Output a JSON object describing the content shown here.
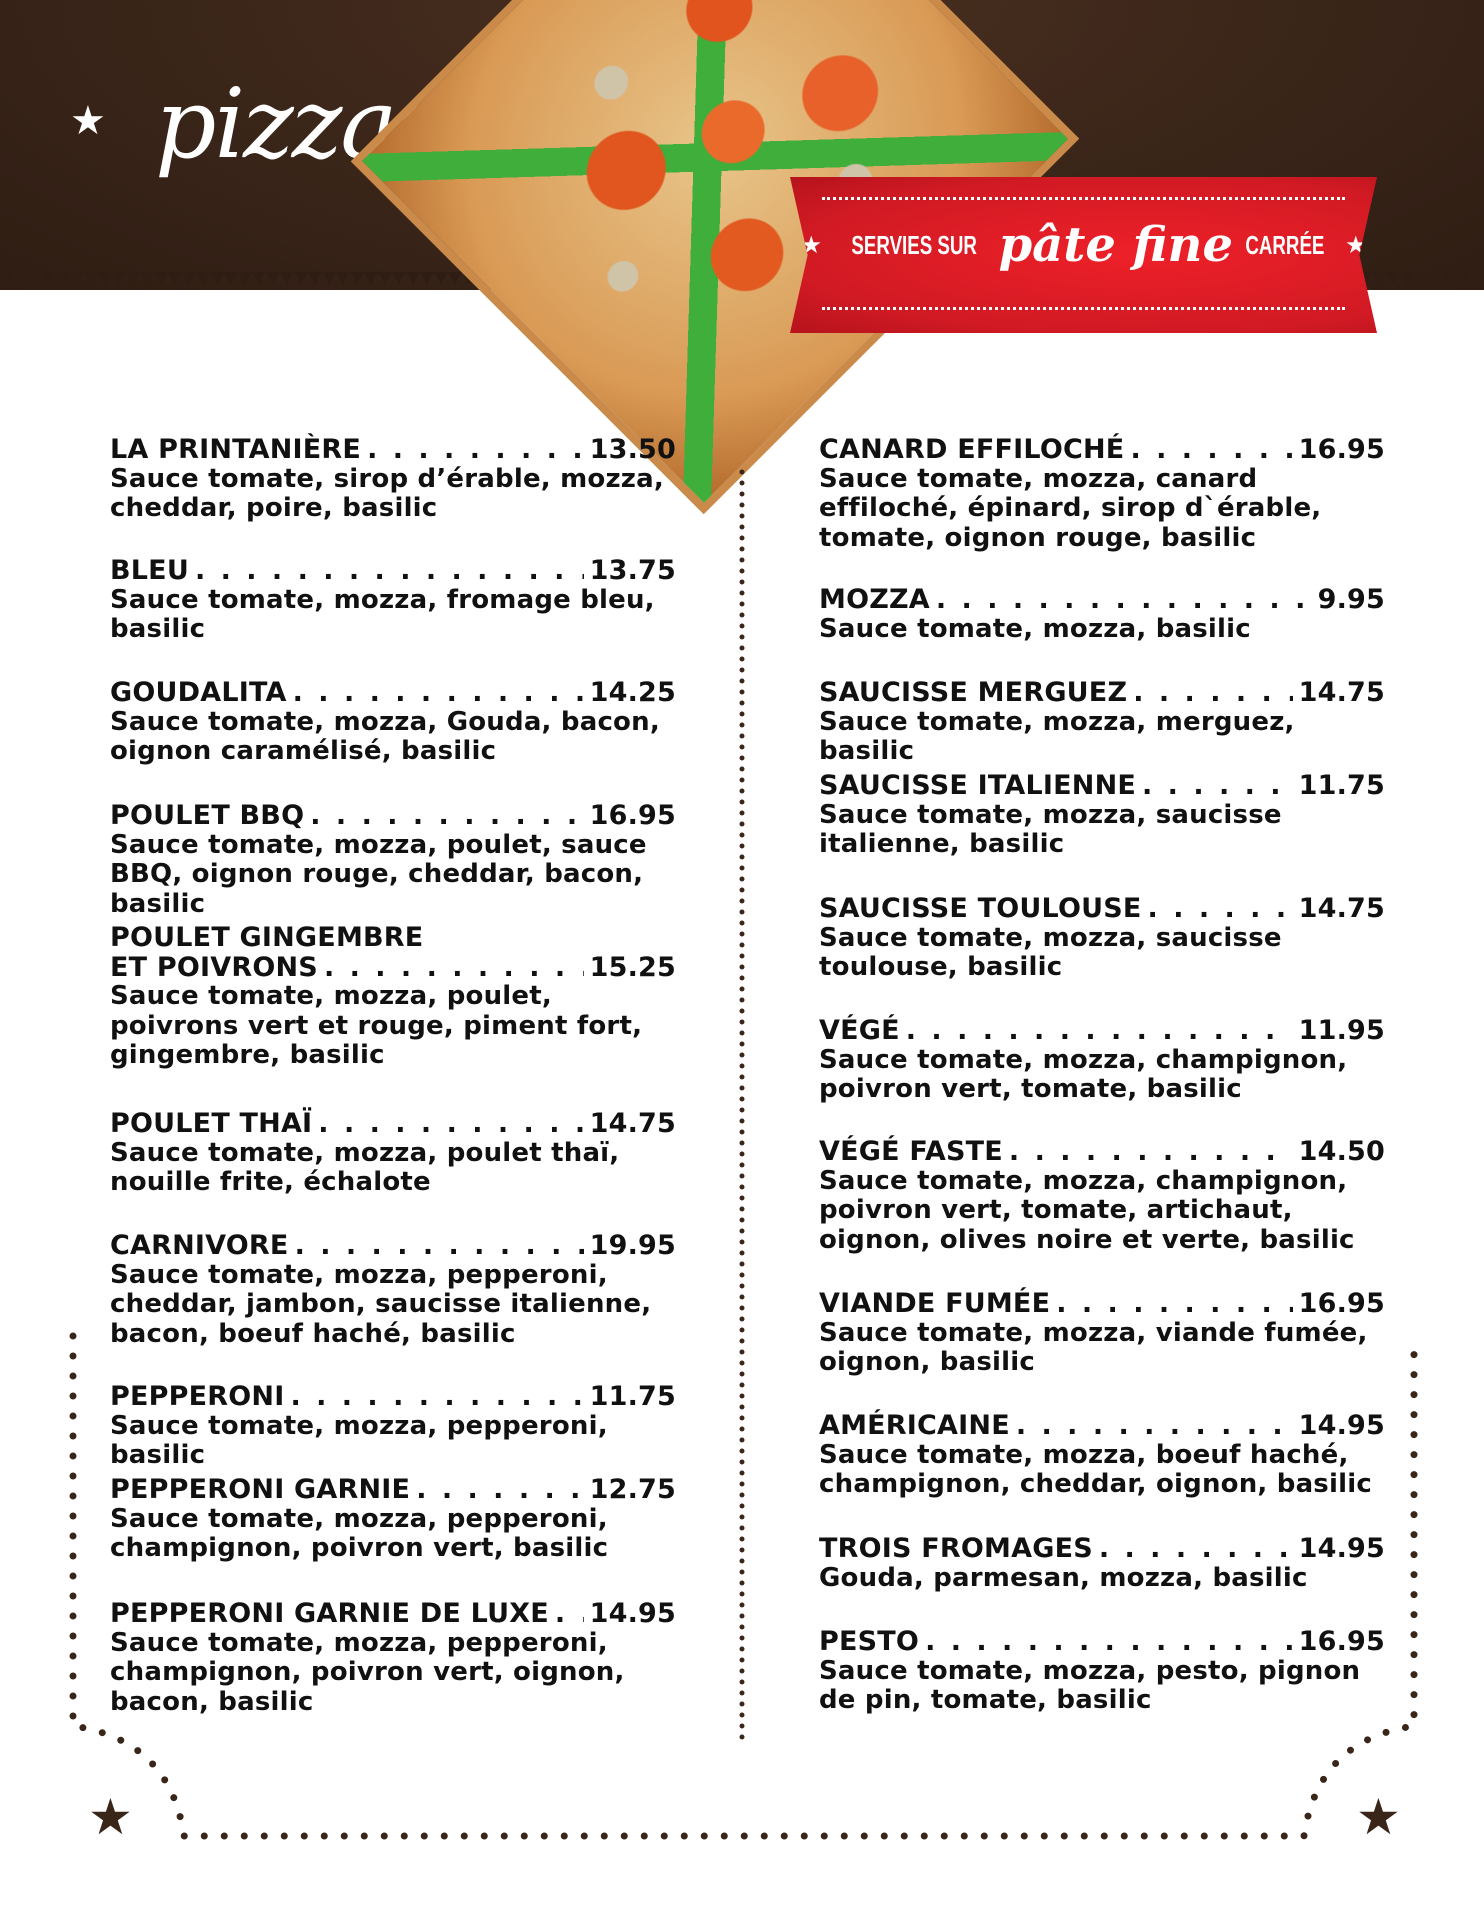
{
  "header": {
    "title": "pizzas",
    "banner": {
      "pre": "SERVIES SUR",
      "script": "pâte fine",
      "post": "CARRÉE"
    }
  },
  "colors": {
    "brown": "#3a2519",
    "red": "#e31e26",
    "text": "#111111"
  },
  "left": [
    {
      "name": "LA PRINTANIÈRE",
      "price": "13.50",
      "desc": "Sauce tomate, sirop d’érable, mozza, cheddar, poire, basilic"
    },
    {
      "name": "BLEU",
      "price": "13.75",
      "desc": "Sauce tomate, mozza, fromage bleu, basilic"
    },
    {
      "name": "GOUDALITA",
      "price": "14.25",
      "desc": "Sauce tomate, mozza, Gouda, bacon, oignon caramélisé, basilic"
    },
    {
      "name": "POULET BBQ",
      "price": "16.95",
      "desc": "Sauce tomate, mozza, poulet, sauce BBQ, oignon rouge, cheddar, bacon, basilic"
    },
    {
      "name_line1": "POULET GINGEMBRE",
      "name": "ET POIVRONS",
      "price": "15.25",
      "desc": "Sauce tomate, mozza, poulet, poivrons vert et rouge, piment fort, gingembre, basilic"
    },
    {
      "name": "POULET THAÏ",
      "price": "14.75",
      "desc": "Sauce tomate, mozza, poulet thaï, nouille frite, échalote"
    },
    {
      "name": "CARNIVORE",
      "price": "19.95",
      "desc": "Sauce tomate, mozza, pepperoni, cheddar, jambon, saucisse italienne, bacon, boeuf haché, basilic"
    },
    {
      "name": "PEPPERONI",
      "price": "11.75",
      "desc": "Sauce tomate, mozza, pepperoni, basilic"
    },
    {
      "name": "PEPPERONI GARNIE",
      "price": "12.75",
      "desc": "Sauce tomate, mozza, pepperoni, champignon, poivron vert, basilic"
    },
    {
      "name": "PEPPERONI GARNIE DE LUXE",
      "price": "14.95",
      "desc": "Sauce tomate, mozza, pepperoni, champignon, poivron vert, oignon, bacon, basilic"
    }
  ],
  "right": [
    {
      "name": "CANARD EFFILOCHÉ",
      "price": "16.95",
      "desc": "Sauce tomate, mozza, canard effiloché, épinard, sirop d`érable, tomate, oignon rouge, basilic"
    },
    {
      "name": "MOZZA",
      "price": "9.95",
      "desc": "Sauce tomate, mozza, basilic"
    },
    {
      "name": "SAUCISSE MERGUEZ",
      "price": "14.75",
      "desc": "Sauce tomate, mozza, merguez, basilic"
    },
    {
      "name": "SAUCISSE ITALIENNE",
      "price": "11.75",
      "desc": "Sauce tomate, mozza, saucisse italienne, basilic"
    },
    {
      "name": "SAUCISSE TOULOUSE",
      "price": "14.75",
      "desc": "Sauce tomate, mozza, saucisse toulouse, basilic"
    },
    {
      "name": "VÉGÉ",
      "price": "11.95",
      "desc": "Sauce tomate, mozza, champignon, poivron vert, tomate, basilic"
    },
    {
      "name": "VÉGÉ FASTE",
      "price": "14.50",
      "desc": "Sauce tomate, mozza, champignon, poivron vert, tomate, artichaut, oignon, olives noire et verte, basilic"
    },
    {
      "name": "VIANDE FUMÉE",
      "price": "16.95",
      "desc": "Sauce tomate, mozza, viande fumée, oignon, basilic"
    },
    {
      "name": "AMÉRICAINE",
      "price": "14.95",
      "desc": "Sauce tomate, mozza, boeuf haché, champignon, cheddar, oignon, basilic"
    },
    {
      "name": "TROIS FROMAGES",
      "price": "14.95",
      "desc": "Gouda, parmesan, mozza, basilic"
    },
    {
      "name": "PESTO",
      "price": "16.95",
      "desc": "Sauce tomate, mozza, pesto, pignon de pin, tomate, basilic"
    }
  ]
}
